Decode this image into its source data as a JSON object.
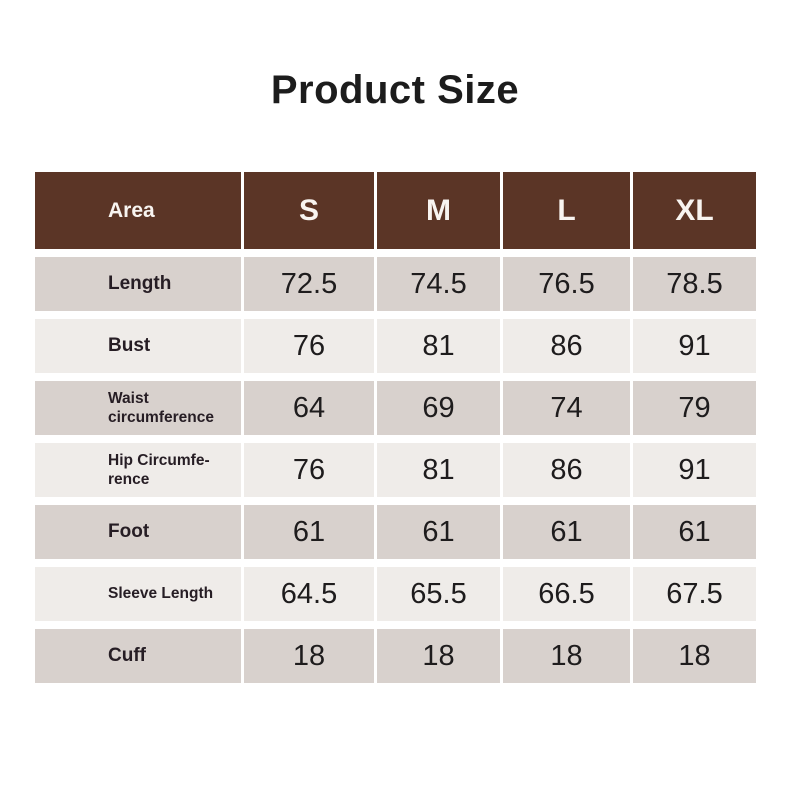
{
  "colors": {
    "page_bg": "#ffffff",
    "title_text": "#1c1c1c",
    "header_bg": "#5b3526",
    "header_text": "#f8f4f0",
    "row_odd_bg": "#d8d1cd",
    "row_even_bg": "#efece9",
    "label_text": "#261d24",
    "value_text": "#1e1c1d"
  },
  "chart_data": {
    "type": "table",
    "title": "Product Size",
    "columns": [
      "Area",
      "S",
      "M",
      "L",
      "XL"
    ],
    "rows": [
      {
        "label": "Length",
        "label_size": "large",
        "values": [
          "72.5",
          "74.5",
          "76.5",
          "78.5"
        ]
      },
      {
        "label": "Bust",
        "label_size": "large",
        "values": [
          "76",
          "81",
          "86",
          "91"
        ]
      },
      {
        "label": "Waist\ncircumference",
        "label_size": "small",
        "values": [
          "64",
          "69",
          "74",
          "79"
        ]
      },
      {
        "label": "Hip Circumfe-\nrence",
        "label_size": "small",
        "values": [
          "76",
          "81",
          "86",
          "91"
        ]
      },
      {
        "label": "Foot",
        "label_size": "large",
        "values": [
          "61",
          "61",
          "61",
          "61"
        ]
      },
      {
        "label": "Sleeve Length",
        "label_size": "small",
        "values": [
          "64.5",
          "65.5",
          "66.5",
          "67.5"
        ]
      },
      {
        "label": "Cuff",
        "label_size": "large",
        "values": [
          "18",
          "18",
          "18",
          "18"
        ]
      }
    ]
  }
}
